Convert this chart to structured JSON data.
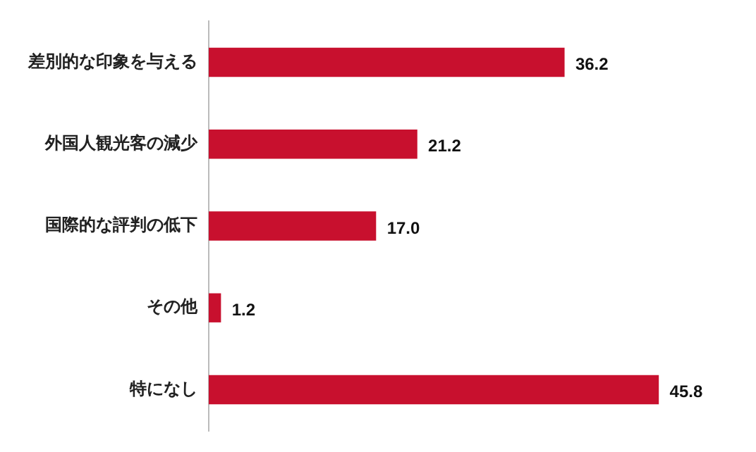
{
  "chart_data": {
    "type": "bar",
    "orientation": "horizontal",
    "categories": [
      "差別的な印象を与える",
      "外国人観光客の減少",
      "国際的な評判の低下",
      "その他",
      "特になし"
    ],
    "values": [
      36.2,
      21.2,
      17.0,
      1.2,
      45.8
    ],
    "value_labels": [
      "36.2",
      "21.2",
      "17.0",
      "1.2",
      "45.8"
    ],
    "color": "#c8102e",
    "tick_labels": "y",
    "legend": false
  }
}
